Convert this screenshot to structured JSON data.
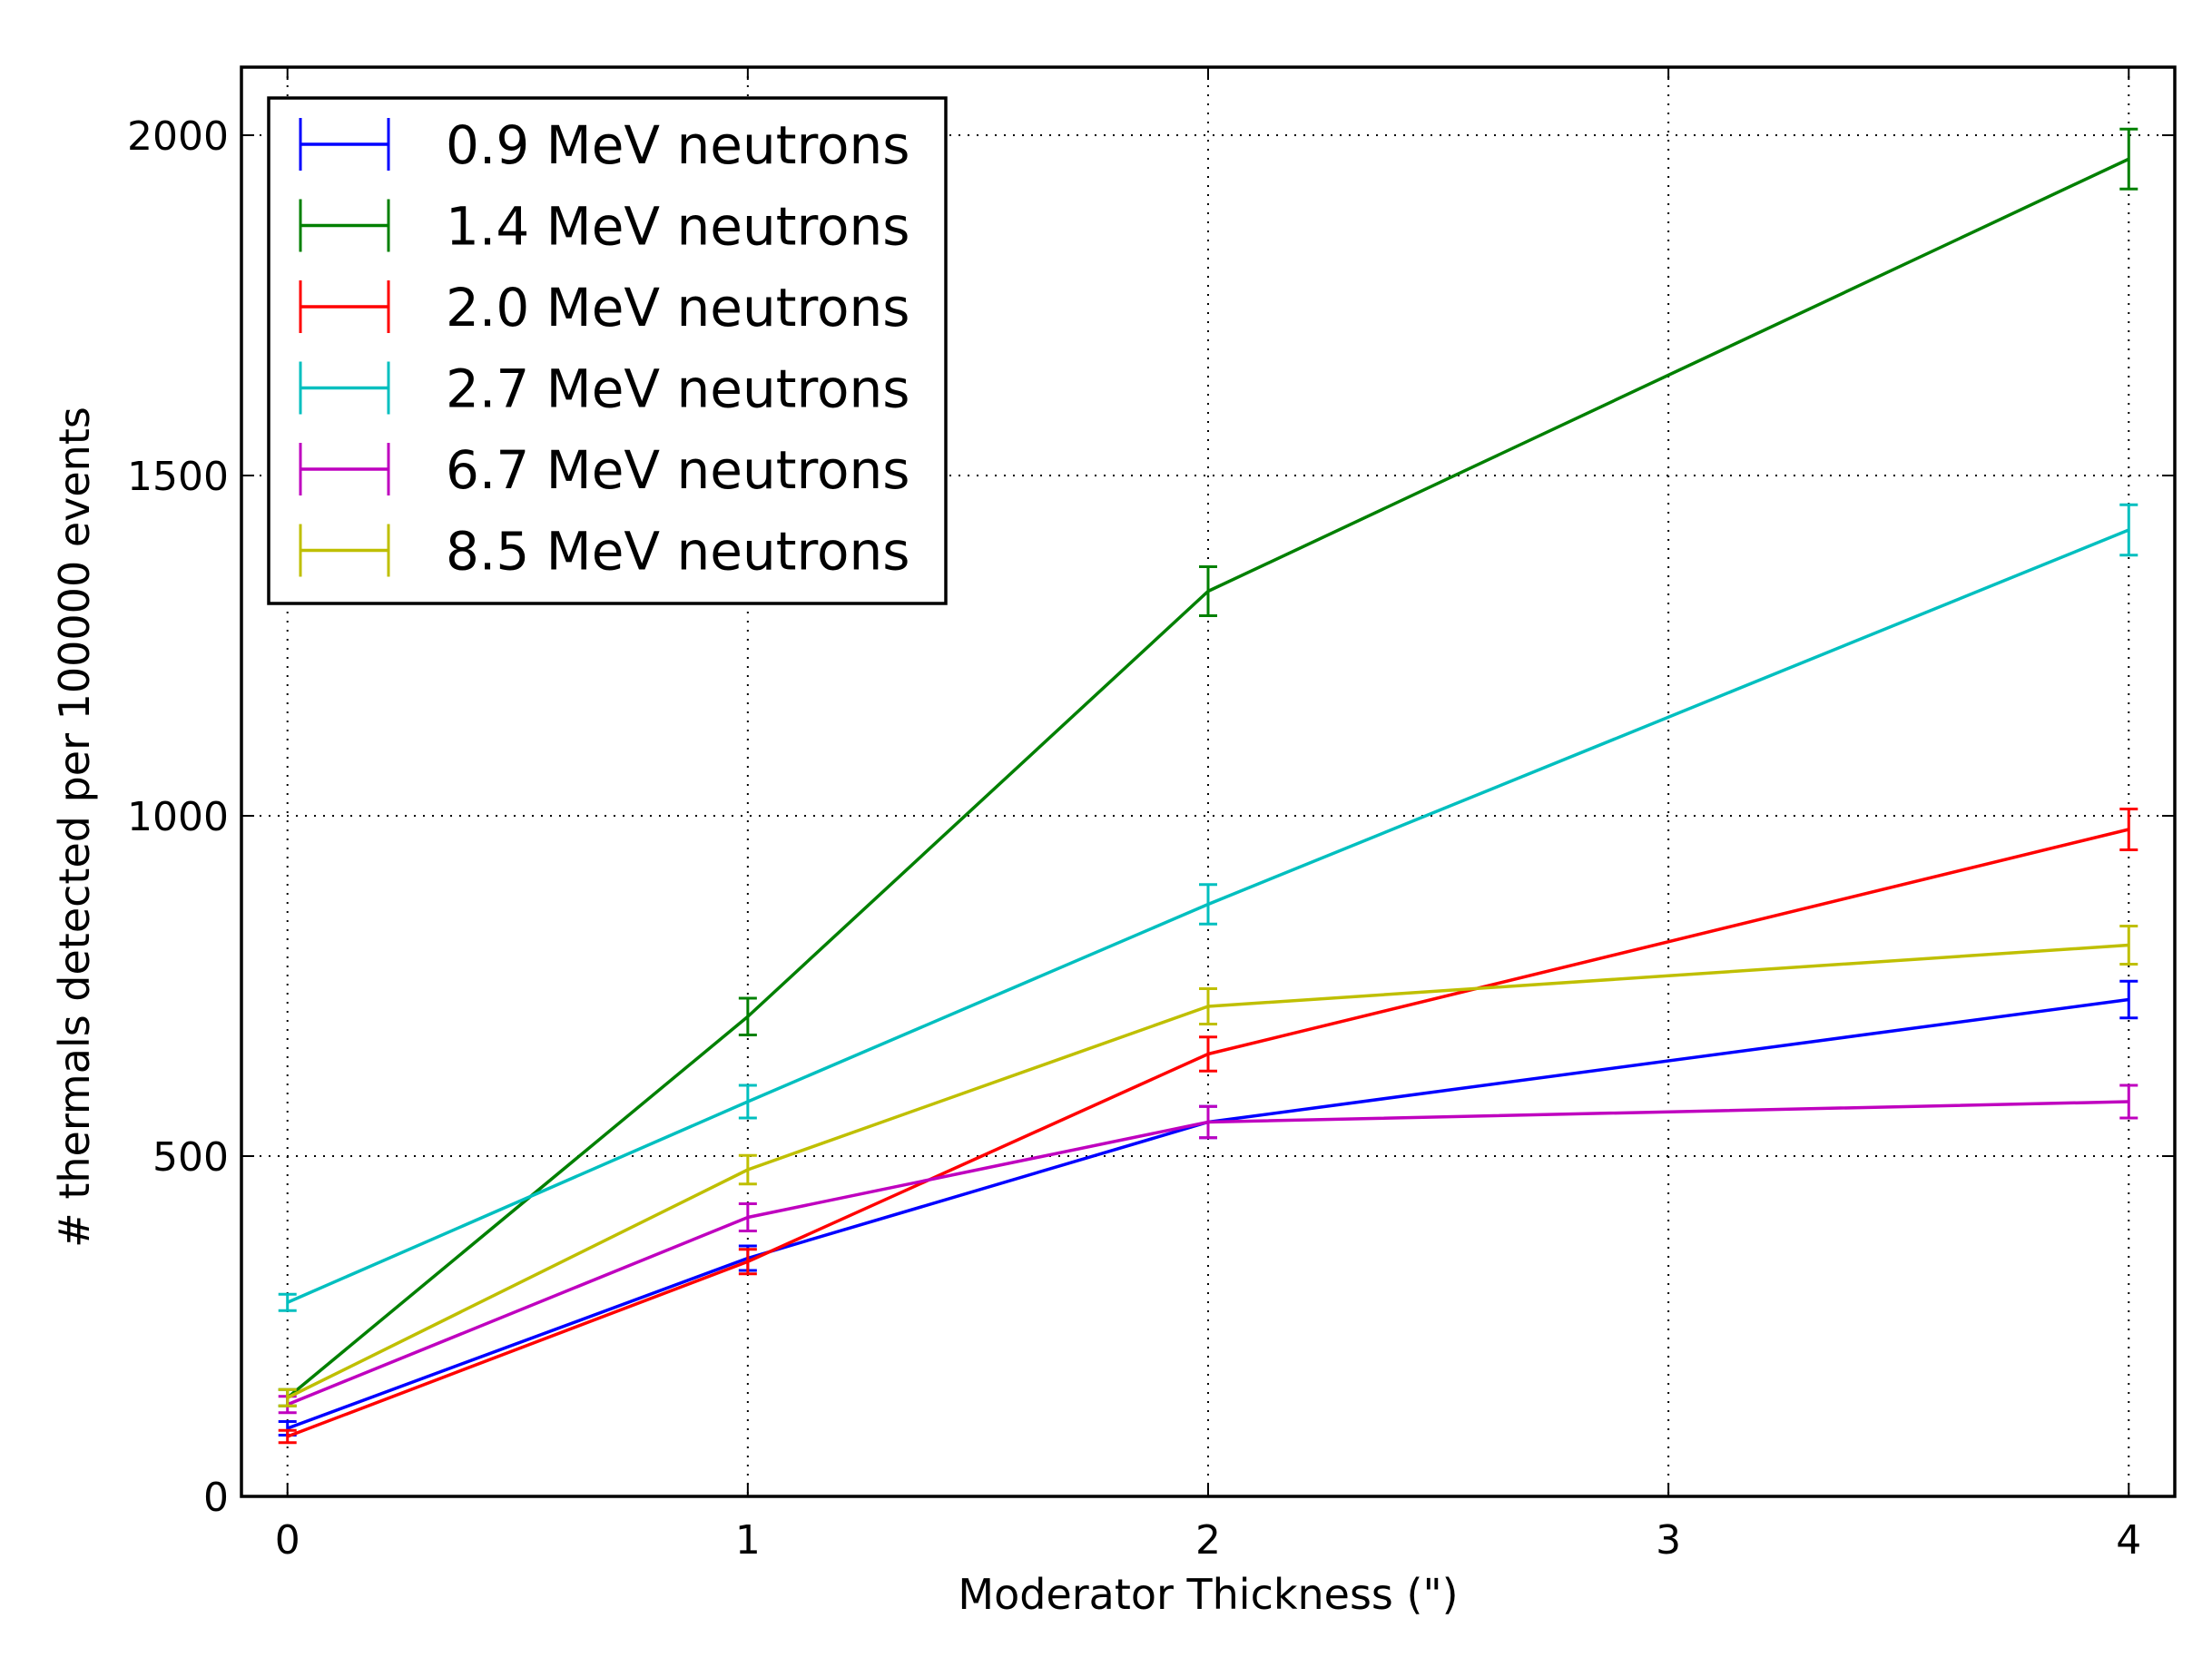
{
  "chart_data": {
    "type": "line",
    "title": "",
    "xlabel": "Moderator Thickness (\")",
    "ylabel": "# thermals detected per 100000 events",
    "xlim": [
      -0.1,
      4.1
    ],
    "ylim": [
      0,
      2100
    ],
    "x_ticks": [
      0,
      1,
      2,
      3,
      4
    ],
    "y_ticks": [
      0,
      500,
      1000,
      1500,
      2000
    ],
    "grid": true,
    "error_bars": true,
    "legend_placement": "upper-left",
    "x": [
      0,
      1,
      2,
      4
    ],
    "series": [
      {
        "name": "0.9 MeV neutrons",
        "color": "#0000ff",
        "values": [
          100,
          350,
          550,
          730
        ],
        "errors": [
          10,
          18,
          23,
          27
        ]
      },
      {
        "name": "1.4 MeV neutrons",
        "color": "#008000",
        "values": [
          145,
          705,
          1330,
          1965
        ],
        "errors": [
          12,
          27,
          36,
          44
        ]
      },
      {
        "name": "2.0 MeV neutrons",
        "color": "#ff0000",
        "values": [
          88,
          345,
          650,
          980
        ],
        "errors": [
          9,
          18,
          25,
          30
        ]
      },
      {
        "name": "2.7 MeV neutrons",
        "color": "#00bfbf",
        "values": [
          285,
          580,
          870,
          1420
        ],
        "errors": [
          12,
          24,
          29,
          37
        ]
      },
      {
        "name": "6.7 MeV neutrons",
        "color": "#bf00bf",
        "values": [
          135,
          410,
          550,
          580
        ],
        "errors": [
          12,
          20,
          23,
          24
        ]
      },
      {
        "name": "8.5 MeV neutrons",
        "color": "#bfbf00",
        "values": [
          145,
          480,
          720,
          810
        ],
        "errors": [
          12,
          21,
          26,
          28
        ]
      }
    ]
  }
}
